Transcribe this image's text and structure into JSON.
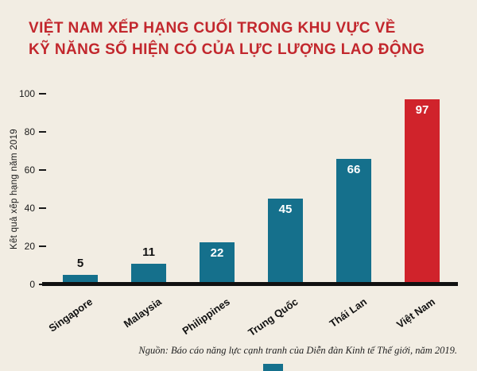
{
  "title": {
    "line1": "VIỆT NAM XẾP HẠNG CUỐI TRONG KHU VỰC VỀ",
    "line2": "KỸ NĂNG SỐ HIỆN CÓ CỦA LỰC LƯỢNG LAO ĐỘNG"
  },
  "source": "Nguồn: Báo cáo năng lực cạnh tranh của Diễn đàn Kinh tế Thế giới, năm 2019.",
  "colors": {
    "background": "#f2ede3",
    "bar_teal": "#15708c",
    "bar_red": "#d0232b",
    "title_red": "#c2272d",
    "text_black": "#1a1a1a"
  },
  "chart_data": {
    "type": "bar",
    "title": "VIỆT NAM XẾP HẠNG CUỐI TRONG KHU VỰC VỀ KỸ NĂNG SỐ HIỆN CÓ CỦA LỰC LƯỢNG LAO ĐỘNG",
    "categories": [
      "Singapore",
      "Malaysia",
      "Philippines",
      "Trung Quốc",
      "Thái Lan",
      "Việt Nam"
    ],
    "values": [
      5,
      11,
      22,
      45,
      66,
      97
    ],
    "bar_colors": [
      "#15708c",
      "#15708c",
      "#15708c",
      "#15708c",
      "#15708c",
      "#d0232b"
    ],
    "highlight_category": "Việt Nam",
    "xlabel": "",
    "ylabel": "Kết quả xếp hạng năm 2019",
    "ylim": [
      0,
      100
    ],
    "yticks": [
      0,
      20,
      40,
      60,
      80,
      100
    ],
    "grid": false,
    "legend": false
  }
}
